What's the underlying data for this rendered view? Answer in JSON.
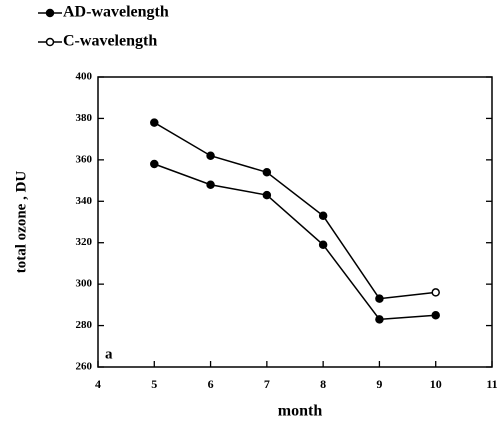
{
  "chart_data": {
    "type": "line",
    "xlabel": "month",
    "ylabel": "total ozone , DU",
    "annotation": "a",
    "x": [
      5,
      6,
      7,
      8,
      9,
      10
    ],
    "series": [
      {
        "name": "AD-wavelength",
        "color": "#000000",
        "markers": [
          "filled",
          "filled",
          "filled",
          "filled",
          "filled",
          "filled"
        ],
        "values": [
          358,
          348,
          343,
          319,
          283,
          285
        ]
      },
      {
        "name": "C-wavelength",
        "color": "#000000",
        "markers": [
          "filled",
          "filled",
          "filled",
          "filled",
          "filled",
          "open"
        ],
        "values": [
          378,
          362,
          354,
          333,
          293,
          296
        ]
      }
    ],
    "xlim": [
      4,
      11
    ],
    "xticks": [
      4,
      5,
      6,
      7,
      8,
      9,
      10,
      11
    ],
    "ylim": [
      260,
      400
    ],
    "yticks": [
      260,
      280,
      300,
      320,
      340,
      360,
      380,
      400
    ],
    "grid": false
  }
}
